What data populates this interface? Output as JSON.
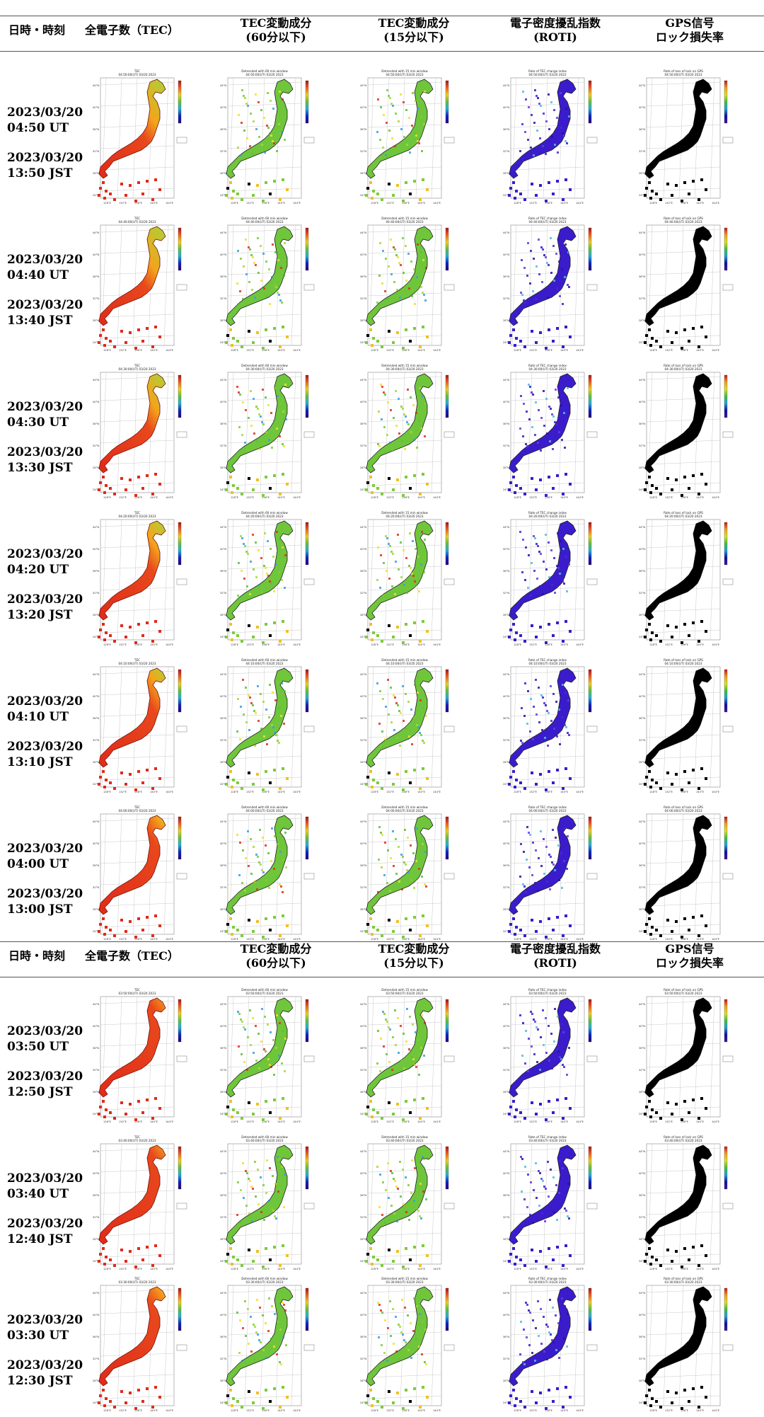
{
  "headers": [
    {
      "line1": "日時・時刻",
      "line2": ""
    },
    {
      "line1": "全電子数（TEC）",
      "line2": ""
    },
    {
      "line1": "TEC変動成分",
      "line2": "(60分以下)"
    },
    {
      "line1": "TEC変動成分",
      "line2": "(15分以下)"
    },
    {
      "line1": "電子密度擾乱指数",
      "line2": "(ROTI)"
    },
    {
      "line1": "GPS信号",
      "line2": "ロック損失率"
    }
  ],
  "map_titles": [
    "TEC",
    "Detrended with 60 min window",
    "Detrended with 15 min window",
    "Rate of TEC change index",
    "Rate of loss of lock on GPS"
  ],
  "map_palette": [
    "red",
    "green",
    "green",
    "purple",
    "black"
  ],
  "axis_lon": [
    "128°E",
    "132°E",
    "136°E",
    "140°E",
    "144°E"
  ],
  "axis_lat": [
    "44°N",
    "40°N",
    "36°N",
    "32°N",
    "28°N",
    "24°N"
  ],
  "rows": [
    {
      "ut": "2023/03/20 04:50 UT",
      "jst": "2023/03/20 13:50 JST",
      "stamp": "04:50:00(UT) 03/20 2023",
      "red": 0.55
    },
    {
      "ut": "2023/03/20 04:40 UT",
      "jst": "2023/03/20 13:40 JST",
      "stamp": "04:40:00(UT) 03/20 2023",
      "red": 0.55
    },
    {
      "ut": "2023/03/20 04:30 UT",
      "jst": "2023/03/20 13:30 JST",
      "stamp": "04:30:00(UT) 03/20 2023",
      "red": 0.6
    },
    {
      "ut": "2023/03/20 04:20 UT",
      "jst": "2023/03/20 13:20 JST",
      "stamp": "04:20:00(UT) 03/20 2023",
      "red": 0.65
    },
    {
      "ut": "2023/03/20 04:10 UT",
      "jst": "2023/03/20 13:10 JST",
      "stamp": "04:10:00(UT) 03/20 2023",
      "red": 0.7
    },
    {
      "ut": "2023/03/20 04:00 UT",
      "jst": "2023/03/20 13:00 JST",
      "stamp": "04:00:00(UT) 03/20 2023",
      "red": 0.78
    },
    {
      "ut": "2023/03/20 03:50 UT",
      "jst": "2023/03/20 12:50 JST",
      "stamp": "03:50:00(UT) 03/20 2023",
      "red": 0.85
    },
    {
      "ut": "2023/03/20 03:40 UT",
      "jst": "2023/03/20 12:40 JST",
      "stamp": "03:40:00(UT) 03/20 2023",
      "red": 0.85
    },
    {
      "ut": "2023/03/20 03:30 UT",
      "jst": "2023/03/20 12:30 JST",
      "stamp": "03:30:00(UT) 03/20 2023",
      "red": 0.8
    }
  ]
}
